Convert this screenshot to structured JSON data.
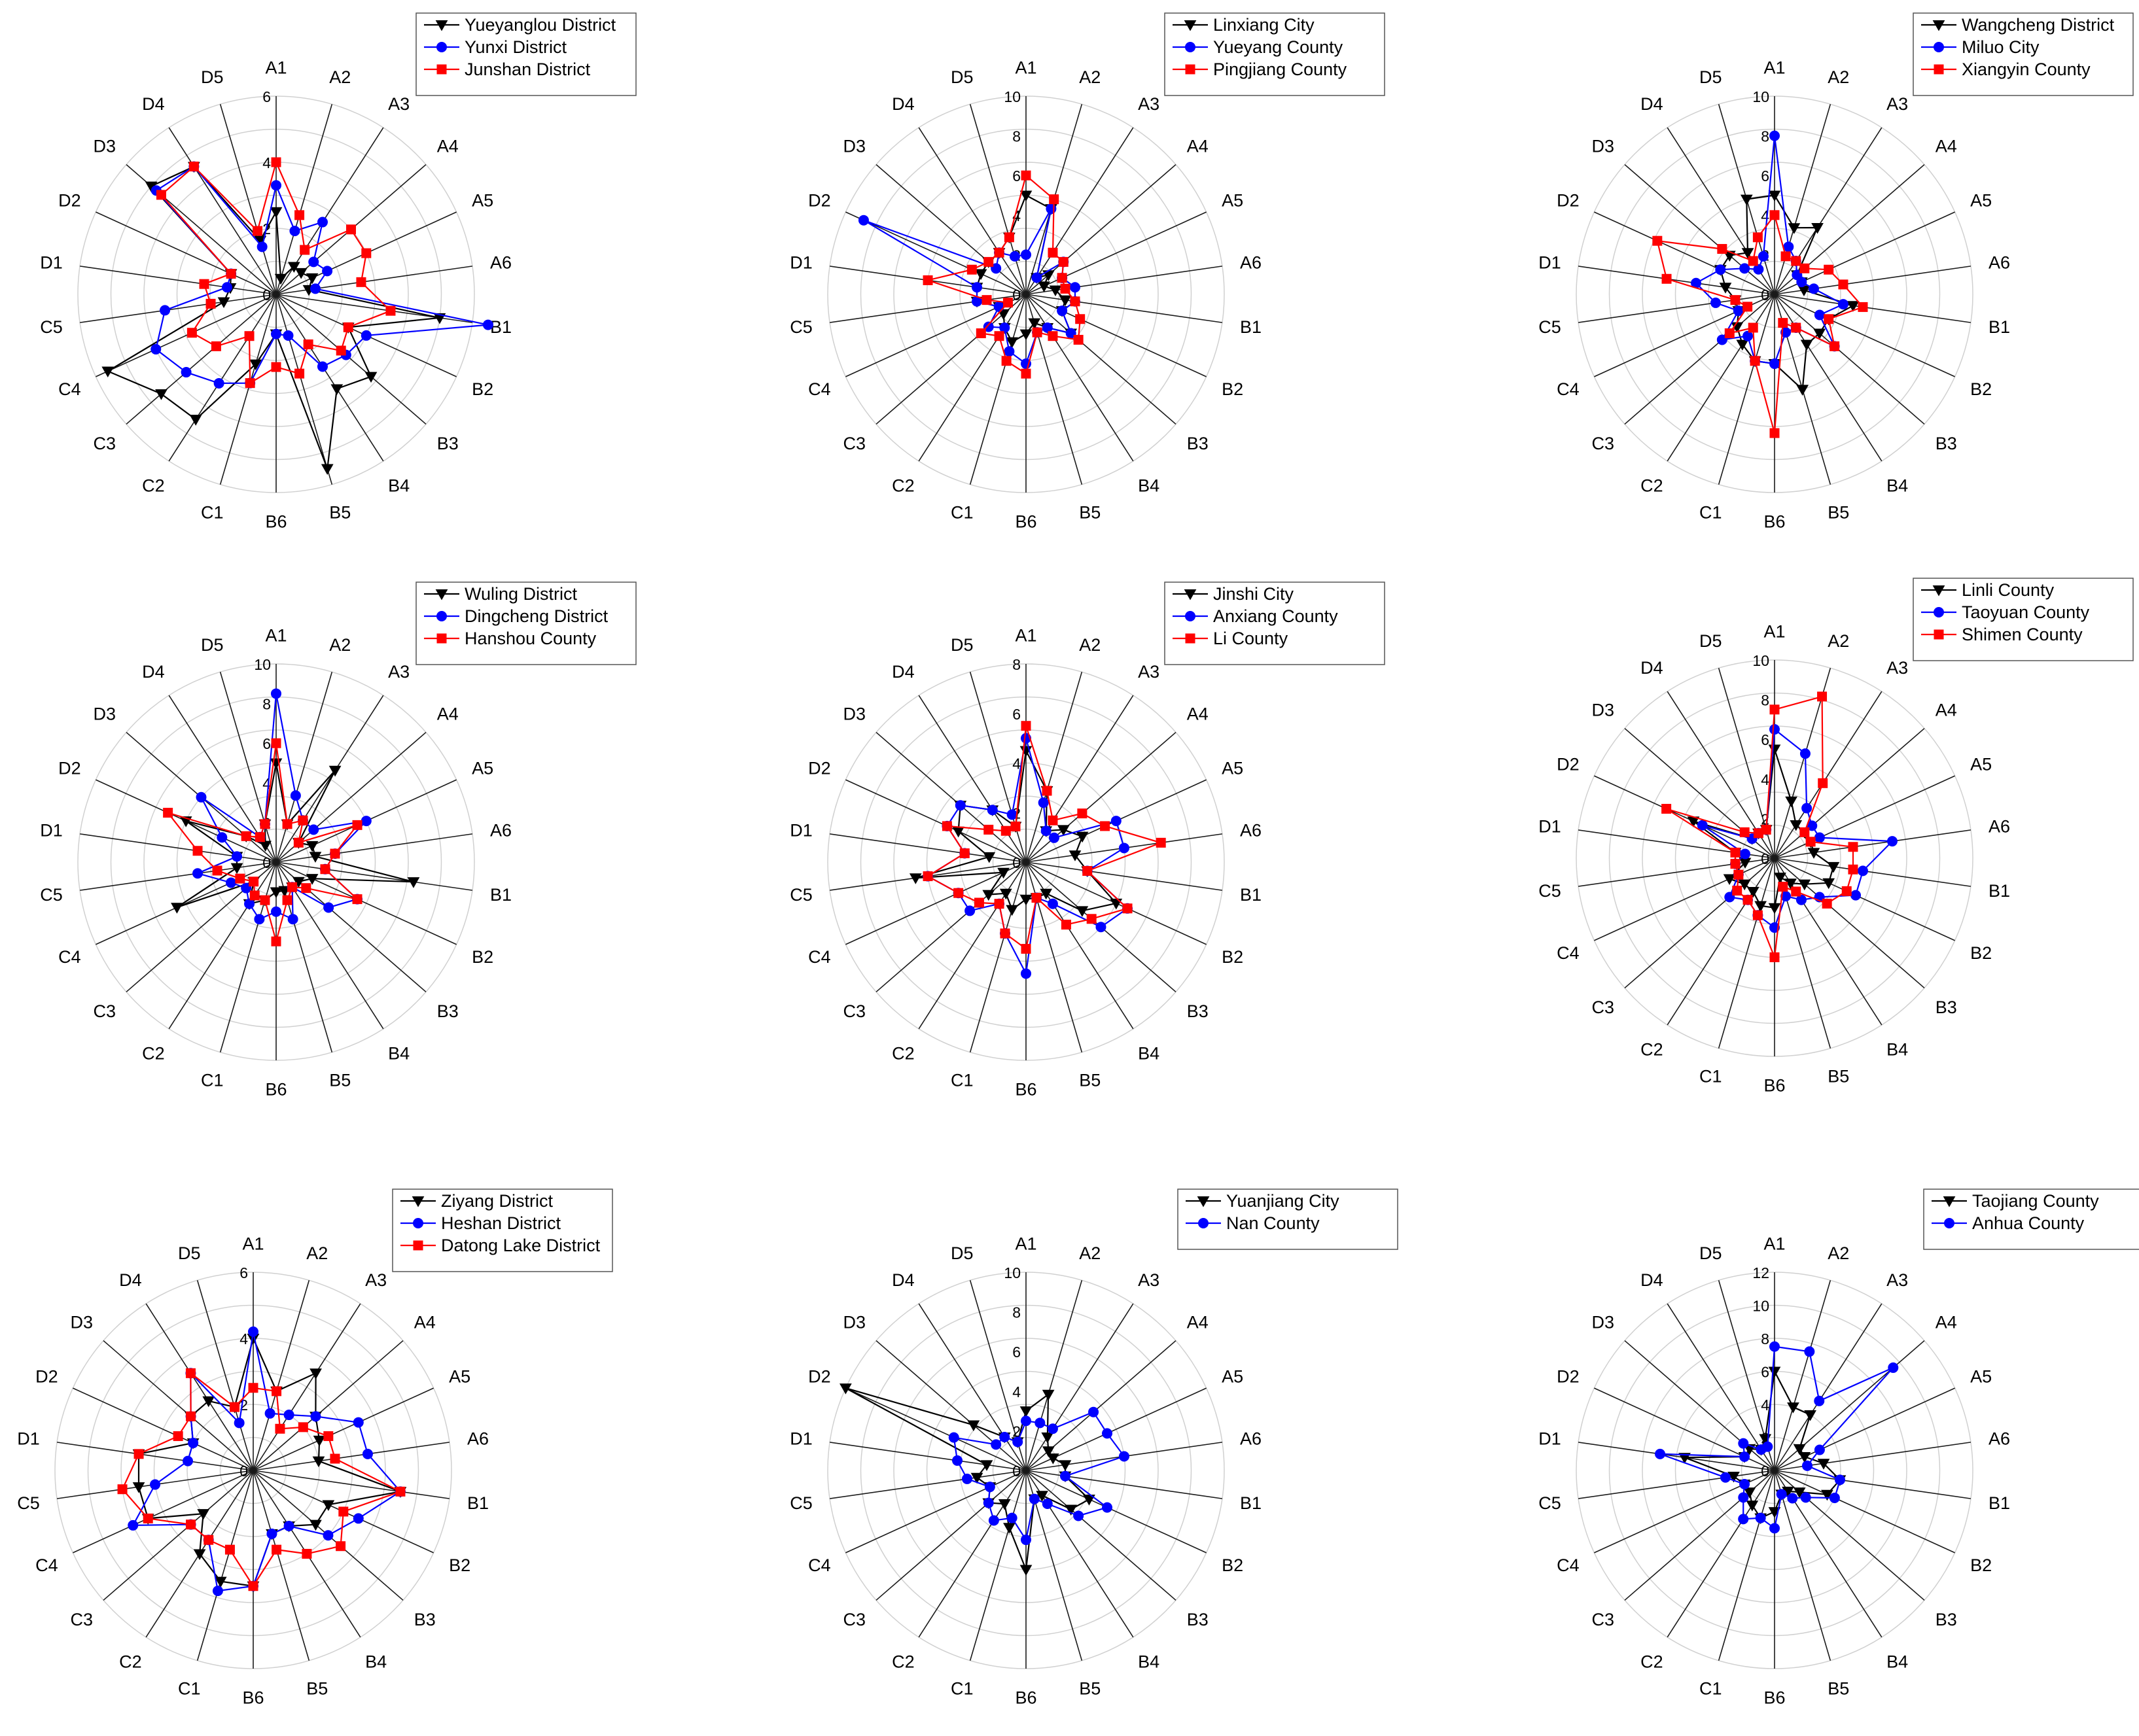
{
  "chart_data": [
    {
      "type": "radar",
      "title": "",
      "categories": [
        "A1",
        "A2",
        "A3",
        "A4",
        "A5",
        "A6",
        "B1",
        "B2",
        "B3",
        "B4",
        "B5",
        "B6",
        "C1",
        "C2",
        "C3",
        "C4",
        "C5",
        "D1",
        "D2",
        "D3",
        "D4",
        "D5"
      ],
      "rmax": 6,
      "ticks": [
        "0",
        "2",
        "4",
        "6"
      ],
      "series": [
        {
          "name": "Yueyanglou District",
          "color": "#000000",
          "marker": "tri-down",
          "values": [
            2.5,
            0.5,
            1,
            1,
            1.2,
            1,
            5,
            2.4,
            3.8,
            3.4,
            5.5,
            1.2,
            2.2,
            4.5,
            4.6,
            5.6,
            1.6,
            1.4,
            1.5,
            5,
            4.6,
            1.7
          ]
        },
        {
          "name": "Yunxi District",
          "color": "#0000ff",
          "marker": "circle",
          "values": [
            3.3,
            2,
            2.6,
            1.5,
            1.7,
            1.2,
            6.7,
            3,
            2.8,
            2.6,
            1.3,
            1.2,
            2.8,
            3.2,
            3.6,
            4,
            3.4,
            1.5,
            1.5,
            4.8,
            4.6,
            1.5
          ]
        },
        {
          "name": "Junshan District",
          "color": "#ff0000",
          "marker": "square",
          "values": [
            4,
            2.5,
            1.6,
            3,
            3,
            2.6,
            3.5,
            2.4,
            2.6,
            1.8,
            2.5,
            2.2,
            2.8,
            1.5,
            2.4,
            2.8,
            2,
            2.2,
            1.5,
            4.6,
            4.6,
            2
          ]
        }
      ]
    },
    {
      "type": "radar",
      "title": "",
      "categories": [
        "A1",
        "A2",
        "A3",
        "A4",
        "A5",
        "A6",
        "B1",
        "B2",
        "B3",
        "B4",
        "B5",
        "B6",
        "C1",
        "C2",
        "C3",
        "C4",
        "C5",
        "D1",
        "D2",
        "D3",
        "D4",
        "D5"
      ],
      "rmax": 10,
      "ticks": [
        "0",
        "2",
        "4",
        "6",
        "8",
        "10"
      ],
      "series": [
        {
          "name": "Linxiang City",
          "color": "#000000",
          "marker": "tri-down",
          "values": [
            5,
            4.5,
            1,
            1.5,
            1,
            1.5,
            2,
            2,
            3,
            2,
            1.5,
            2,
            2.5,
            2,
            1.5,
            1.5,
            2.5,
            2.5,
            2.5,
            2.5,
            2.5,
            3
          ]
        },
        {
          "name": "Yueyang County",
          "color": "#0000ff",
          "marker": "circle",
          "values": [
            2,
            4.5,
            1,
            2.5,
            2,
            2.5,
            2.5,
            2,
            3,
            2,
            2,
            3.5,
            3,
            2,
            2.5,
            1.5,
            2.5,
            2.5,
            9,
            2,
            2.5,
            2
          ]
        },
        {
          "name": "Pingjiang County",
          "color": "#ff0000",
          "marker": "square",
          "values": [
            6,
            5,
            2.5,
            2.5,
            2,
            2,
            2.5,
            3,
            3.5,
            2.5,
            2,
            4,
            3.5,
            2.5,
            3,
            1,
            2,
            5,
            3,
            2.5,
            2.5,
            3
          ]
        }
      ]
    },
    {
      "type": "radar",
      "title": "",
      "categories": [
        "A1",
        "A2",
        "A3",
        "A4",
        "A5",
        "A6",
        "B1",
        "B2",
        "B3",
        "B4",
        "B5",
        "B6",
        "C1",
        "C2",
        "C3",
        "C4",
        "C5",
        "D1",
        "D2",
        "D3",
        "D4",
        "D5"
      ],
      "rmax": 10,
      "ticks": [
        "0",
        "2",
        "4",
        "6",
        "8",
        "10"
      ],
      "series": [
        {
          "name": "Wangcheng District",
          "color": "#000000",
          "marker": "tri-down",
          "values": [
            5,
            3.5,
            4,
            1.5,
            1.5,
            1.5,
            4,
            3,
            3,
            3,
            5,
            3.5,
            3.5,
            3,
            2.5,
            2,
            2,
            2.5,
            3,
            3,
            2.5,
            5
          ]
        },
        {
          "name": "Miluo City",
          "color": "#0000ff",
          "marker": "circle",
          "values": [
            8,
            2.5,
            2,
            1.5,
            1.5,
            2,
            3.5,
            2.5,
            4,
            2,
            2,
            3.5,
            3.5,
            2.5,
            3.5,
            2,
            3,
            4,
            3,
            2,
            1.5,
            2
          ]
        },
        {
          "name": "Xiangyin County",
          "color": "#ff0000",
          "marker": "square",
          "values": [
            4,
            2,
            2,
            2,
            3,
            3.5,
            4.5,
            3,
            4,
            2,
            1.5,
            7,
            3.5,
            2,
            3,
            1.5,
            2,
            5.5,
            6.5,
            3.5,
            2,
            3
          ]
        }
      ]
    },
    {
      "type": "radar",
      "title": "",
      "categories": [
        "A1",
        "A2",
        "A3",
        "A4",
        "A5",
        "A6",
        "B1",
        "B2",
        "B3",
        "B4",
        "B5",
        "B6",
        "C1",
        "C2",
        "C3",
        "C4",
        "C5",
        "D1",
        "D2",
        "D3",
        "D4",
        "D5"
      ],
      "rmax": 10,
      "ticks": [
        "0",
        "2",
        "4",
        "6",
        "8",
        "10"
      ],
      "series": [
        {
          "name": "Wuling District",
          "color": "#000000",
          "marker": "tri-down",
          "values": [
            5,
            2,
            5.5,
            1.5,
            2,
            2,
            7,
            2,
            1.5,
            1.5,
            1.5,
            1.5,
            2,
            2.5,
            1.5,
            5.5,
            2,
            2,
            5,
            2,
            1,
            2
          ]
        },
        {
          "name": "Dingcheng District",
          "color": "#0000ff",
          "marker": "circle",
          "values": [
            8.5,
            3.5,
            2.5,
            2.5,
            5,
            3,
            2.5,
            4.5,
            3.5,
            1.5,
            3,
            2.5,
            3,
            2.5,
            2,
            2.5,
            4,
            2,
            3,
            5,
            1.5,
            2
          ]
        },
        {
          "name": "Hanshou County",
          "color": "#ff0000",
          "marker": "square",
          "values": [
            6,
            2,
            2.5,
            1.5,
            4.5,
            3,
            2.5,
            4.5,
            2,
            1.5,
            2,
            4,
            2,
            2,
            1.5,
            2,
            3,
            4,
            6,
            2,
            1.5,
            2
          ]
        }
      ]
    },
    {
      "type": "radar",
      "title": "",
      "categories": [
        "A1",
        "A2",
        "A3",
        "A4",
        "A5",
        "A6",
        "B1",
        "B2",
        "B3",
        "B4",
        "B5",
        "B6",
        "C1",
        "C2",
        "C3",
        "C4",
        "C5",
        "D1",
        "D2",
        "D3",
        "D4",
        "D5"
      ],
      "rmax": 8,
      "ticks": [
        "0",
        "2",
        "4",
        "6",
        "8"
      ],
      "series": [
        {
          "name": "Jinshi City",
          "color": "#000000",
          "marker": "tri-down",
          "values": [
            4.5,
            3,
            1.5,
            2,
            2.5,
            2,
            2.5,
            4,
            3,
            1.5,
            1.5,
            1.5,
            2,
            1.5,
            2,
            1,
            4.5,
            1.5,
            3,
            3.5,
            2.5,
            1.5
          ]
        },
        {
          "name": "Anxiang County",
          "color": "#0000ff",
          "marker": "circle",
          "values": [
            5,
            2.5,
            1.5,
            1.5,
            4,
            4,
            2.5,
            4.5,
            4,
            2,
            1.5,
            4.5,
            3,
            2,
            3,
            3,
            4,
            2.5,
            3.5,
            3.5,
            2.5,
            2
          ]
        },
        {
          "name": "Li County",
          "color": "#ff0000",
          "marker": "square",
          "values": [
            5.5,
            3,
            2,
            3,
            3.5,
            5.5,
            2.5,
            4.5,
            3.5,
            3,
            1.5,
            3.5,
            3,
            2,
            2.5,
            3,
            4,
            2.5,
            3.5,
            2,
            1.5,
            1.5
          ]
        }
      ]
    },
    {
      "type": "radar",
      "title": "",
      "categories": [
        "A1",
        "A2",
        "A3",
        "A4",
        "A5",
        "A6",
        "B1",
        "B2",
        "B3",
        "B4",
        "B5",
        "B6",
        "C1",
        "C2",
        "C3",
        "C4",
        "C5",
        "D1",
        "D2",
        "D3",
        "D4",
        "D5"
      ],
      "rmax": 10,
      "ticks": [
        "0",
        "2",
        "4",
        "6",
        "8",
        "10"
      ],
      "series": [
        {
          "name": "Linli County",
          "color": "#000000",
          "marker": "tri-down",
          "values": [
            5.5,
            3,
            2,
            2,
            2,
            2,
            3,
            3,
            2,
            1.5,
            1,
            2.5,
            2.5,
            2,
            2,
            2.5,
            1.5,
            2,
            4.5,
            1.5,
            1.5,
            1.5
          ]
        },
        {
          "name": "Taoyuan County",
          "color": "#0000ff",
          "marker": "circle",
          "values": [
            6.5,
            5.5,
            3,
            2.5,
            2.5,
            6,
            4.5,
            4.5,
            3,
            2.5,
            2,
            3.5,
            3,
            2.5,
            3,
            2,
            2,
            1.5,
            4,
            1.5,
            1.5,
            1.5
          ]
        },
        {
          "name": "Shimen County",
          "color": "#ff0000",
          "marker": "square",
          "values": [
            7.5,
            8.5,
            4.5,
            2,
            2,
            4,
            4,
            4,
            3.5,
            2,
            1.5,
            5,
            3,
            2.5,
            2.5,
            2,
            2,
            2,
            6,
            2,
            1.5,
            1.5
          ]
        }
      ]
    },
    {
      "type": "radar",
      "title": "",
      "categories": [
        "A1",
        "A2",
        "A3",
        "A4",
        "A5",
        "A6",
        "B1",
        "B2",
        "B3",
        "B4",
        "B5",
        "B6",
        "C1",
        "C2",
        "C3",
        "C4",
        "C5",
        "D1",
        "D2",
        "D3",
        "D4",
        "D5"
      ],
      "rmax": 6,
      "ticks": [
        "0",
        "2",
        "4",
        "6"
      ],
      "series": [
        {
          "name": "Ziyang District",
          "color": "#000000",
          "marker": "tri-down",
          "values": [
            4,
            2.5,
            3.5,
            2.5,
            2.2,
            2,
            4.5,
            2.5,
            2.5,
            2,
            2,
            3.5,
            3.5,
            3,
            2,
            3.5,
            3.5,
            3.5,
            2,
            2.5,
            2.5,
            2
          ]
        },
        {
          "name": "Heshan District",
          "color": "#0000ff",
          "marker": "circle",
          "values": [
            4.2,
            1.8,
            2,
            2.5,
            3.5,
            3.5,
            4.5,
            3.5,
            3,
            2,
            2,
            3.5,
            3.8,
            2.5,
            2.5,
            4,
            3,
            2,
            2,
            2.5,
            3.5,
            1.5
          ]
        },
        {
          "name": "Datong Lake District",
          "color": "#ff0000",
          "marker": "square",
          "values": [
            2.5,
            2.5,
            1.5,
            2,
            2.5,
            2.5,
            4.5,
            3,
            3.5,
            3,
            2.5,
            3.5,
            2.5,
            2.5,
            2.5,
            3.5,
            4,
            3.5,
            2.5,
            2.5,
            3.5,
            2
          ]
        }
      ]
    },
    {
      "type": "radar",
      "title": "",
      "categories": [
        "A1",
        "A2",
        "A3",
        "A4",
        "A5",
        "A6",
        "B1",
        "B2",
        "B3",
        "B4",
        "B5",
        "B6",
        "C1",
        "C2",
        "C3",
        "C4",
        "C5",
        "D1",
        "D2",
        "D3",
        "D4",
        "D5"
      ],
      "rmax": 10,
      "ticks": [
        "0",
        "2",
        "4",
        "6",
        "8",
        "10"
      ],
      "series": [
        {
          "name": "Yuanjiang City",
          "color": "#000000",
          "marker": "tri-down",
          "values": [
            3,
            4,
            2,
            1.5,
            1.5,
            2,
            2,
            3.5,
            3,
            1.5,
            1.5,
            5,
            3,
            2,
            2.5,
            2,
            2.5,
            2,
            10,
            3.5,
            2,
            1.5
          ]
        },
        {
          "name": "Nan County",
          "color": "#0000ff",
          "marker": "circle",
          "values": [
            2.5,
            2.5,
            2.5,
            4.5,
            4.5,
            5,
            2,
            4.5,
            3.5,
            2,
            1.5,
            3.5,
            2.5,
            3,
            2.5,
            2,
            3,
            3.5,
            4,
            2,
            2,
            1.5
          ]
        }
      ]
    },
    {
      "type": "radar",
      "title": "",
      "categories": [
        "A1",
        "A2",
        "A3",
        "A4",
        "A5",
        "A6",
        "B1",
        "B2",
        "B3",
        "B4",
        "B5",
        "B6",
        "C1",
        "C2",
        "C3",
        "C4",
        "C5",
        "D1",
        "D2",
        "D3",
        "D4",
        "D5"
      ],
      "rmax": 12,
      "ticks": [
        "0",
        "2",
        "4",
        "6",
        "8",
        "10",
        "12"
      ],
      "series": [
        {
          "name": "Taojiang County",
          "color": "#000000",
          "marker": "tri-down",
          "values": [
            6,
            4,
            4,
            2,
            2,
            3,
            4,
            3.5,
            2,
            1.5,
            1.5,
            2.5,
            3,
            2.5,
            2,
            2,
            2.5,
            5.5,
            2,
            2,
            1.5,
            2
          ]
        },
        {
          "name": "Anhua County",
          "color": "#0000ff",
          "marker": "circle",
          "values": [
            7.5,
            7.5,
            5,
            9.5,
            3,
            2,
            4,
            4,
            2.5,
            2,
            1.5,
            3.5,
            3,
            3.5,
            2.5,
            2,
            3,
            7,
            2,
            2.5,
            1.5,
            1.5
          ]
        }
      ]
    }
  ]
}
